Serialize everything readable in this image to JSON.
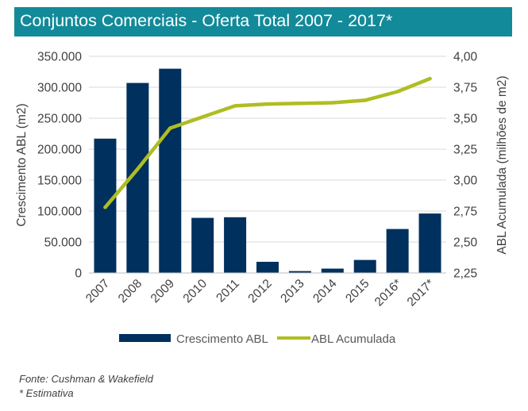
{
  "title": "Conjuntos Comerciais - Oferta Total 2007 - 2017*",
  "colors": {
    "title_bg": "#128a99",
    "bar": "#00305e",
    "line": "#afbd22",
    "grid": "#d9d9d9",
    "text": "#404040"
  },
  "chart_data": {
    "type": "bar",
    "categories": [
      "2007",
      "2008",
      "2009",
      "2010",
      "2011",
      "2012",
      "2013",
      "2014",
      "2015",
      "2016*",
      "2017*"
    ],
    "series": [
      {
        "name": "Crescimento ABL",
        "type": "bar",
        "axis": "left",
        "values": [
          217000,
          307000,
          330000,
          89000,
          90000,
          18000,
          3000,
          7000,
          21000,
          71000,
          96000
        ]
      },
      {
        "name": "ABL Acumulada",
        "type": "line",
        "axis": "right",
        "values": [
          2.78,
          3.09,
          3.42,
          3.51,
          3.6,
          3.615,
          3.62,
          3.625,
          3.645,
          3.715,
          3.82
        ]
      }
    ],
    "ylabel": "Crescimento ABL (m2)",
    "ylabel_right": "ABL Acumulada (milhões de m2)",
    "ylim": [
      0,
      350000
    ],
    "ylim_right": [
      2.25,
      4.0
    ],
    "yticks": [
      "0",
      "50.000",
      "100.000",
      "150.000",
      "200.000",
      "250.000",
      "300.000",
      "350.000"
    ],
    "yticks_right": [
      "2,25",
      "2,50",
      "2,75",
      "3,00",
      "3,25",
      "3,50",
      "3,75",
      "4,00"
    ],
    "grid": true,
    "legend_position": "bottom"
  },
  "footnotes": {
    "source": "Fonte: Cushman & Wakefield",
    "note": "* Estimativa"
  }
}
